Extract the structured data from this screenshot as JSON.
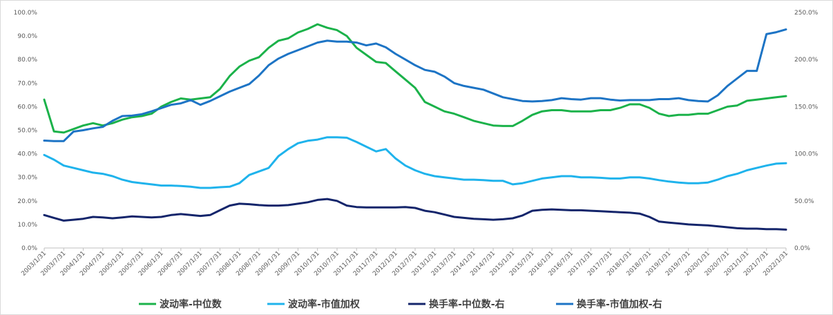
{
  "chart_data": {
    "type": "line",
    "title": "",
    "xlabel": "",
    "ylabel": "",
    "grid": false,
    "legend_position": "bottom",
    "left_axis": {
      "ylim": [
        0,
        100
      ],
      "ticks": [
        "0.0%",
        "10.0%",
        "20.0%",
        "30.0%",
        "40.0%",
        "50.0%",
        "60.0%",
        "70.0%",
        "80.0%",
        "90.0%",
        "100.0%"
      ]
    },
    "right_axis": {
      "ylim": [
        0,
        250
      ],
      "ticks": [
        "0.0%",
        "50.0%",
        "100.0%",
        "150.0%",
        "200.0%",
        "250.0%"
      ]
    },
    "x_tick_labels": [
      "2003/1/31",
      "2003/7/31",
      "2004/1/31",
      "2004/7/31",
      "2005/1/31",
      "2005/7/31",
      "2006/1/31",
      "2006/7/31",
      "2007/1/31",
      "2007/7/31",
      "2008/1/31",
      "2008/7/31",
      "2009/1/31",
      "2009/7/31",
      "2010/1/31",
      "2010/7/31",
      "2011/1/31",
      "2011/7/31",
      "2012/1/31",
      "2012/7/31",
      "2013/1/31",
      "2013/7/31",
      "2014/1/31",
      "2014/7/31",
      "2015/1/31",
      "2015/7/31",
      "2016/1/31",
      "2016/7/31",
      "2017/1/31",
      "2017/7/31",
      "2018/1/31",
      "2018/7/31",
      "2019/1/31",
      "2019/7/31",
      "2020/1/31",
      "2020/7/31",
      "2021/1/31",
      "2021/7/31",
      "2022/1/31"
    ],
    "series": [
      {
        "name": "波动率-中位数",
        "axis": "left",
        "color": "#1bb24a",
        "values": [
          63.0,
          49.5,
          49.0,
          50.5,
          52.0,
          53.0,
          52.0,
          53.0,
          54.5,
          55.5,
          56.0,
          57.0,
          60.0,
          62.0,
          63.5,
          63.0,
          63.5,
          64.0,
          67.5,
          73.0,
          77.0,
          79.5,
          81.0,
          85.0,
          88.0,
          89.0,
          91.5,
          93.0,
          95.0,
          93.5,
          92.5,
          90.0,
          85.0,
          82.0,
          79.0,
          78.5,
          75.0,
          71.5,
          68.0,
          62.0,
          60.0,
          58.0,
          57.0,
          55.5,
          54.0,
          53.0,
          52.0,
          51.8,
          51.8,
          54.0,
          56.5,
          58.0,
          58.5,
          58.5,
          58.0,
          58.0,
          58.0,
          58.5,
          58.5,
          59.5,
          61.0,
          61.0,
          59.5,
          57.0,
          56.0,
          56.5,
          56.5,
          57.0,
          57.0,
          58.5,
          60.0,
          60.5,
          62.5,
          63.0,
          63.5,
          64.0,
          64.5
        ]
      },
      {
        "name": "波动率-市值加权",
        "axis": "left",
        "color": "#1fb3ec",
        "values": [
          39.5,
          37.5,
          35.0,
          34.0,
          33.0,
          32.0,
          31.5,
          30.5,
          29.0,
          28.0,
          27.5,
          27.0,
          26.5,
          26.5,
          26.3,
          26.0,
          25.5,
          25.5,
          25.8,
          26.0,
          27.5,
          31.0,
          32.5,
          34.0,
          39.0,
          42.0,
          44.5,
          45.5,
          46.0,
          47.0,
          47.0,
          46.8,
          45.0,
          43.0,
          41.0,
          42.0,
          38.0,
          35.0,
          33.0,
          31.5,
          30.5,
          30.0,
          29.5,
          29.0,
          29.0,
          28.8,
          28.5,
          28.5,
          27.0,
          27.5,
          28.5,
          29.5,
          30.0,
          30.5,
          30.5,
          30.0,
          30.0,
          29.8,
          29.5,
          29.5,
          30.0,
          30.0,
          29.5,
          28.8,
          28.2,
          27.8,
          27.5,
          27.5,
          27.8,
          29.0,
          30.5,
          31.5,
          33.0,
          34.0,
          35.0,
          35.8,
          36.0
        ]
      },
      {
        "name": "换手率-中位数-右",
        "axis": "right",
        "color": "#14256b",
        "values": [
          35,
          32,
          29,
          30,
          31,
          33,
          32.5,
          31.5,
          32.5,
          33.5,
          33,
          32.5,
          33,
          35,
          36,
          35,
          34,
          35,
          40,
          45,
          47,
          46.5,
          45.5,
          45,
          45,
          45.5,
          47,
          48.5,
          51,
          52,
          50,
          45,
          43.5,
          43,
          43,
          43,
          43,
          43.5,
          42.5,
          39.5,
          38,
          35.5,
          33,
          32,
          31,
          30.5,
          30,
          30.5,
          31.5,
          34.5,
          39.5,
          40.5,
          41,
          40.5,
          40,
          40,
          39.5,
          39,
          38.5,
          38,
          37.5,
          36.5,
          33,
          28,
          27,
          26,
          25,
          24.5,
          24,
          23,
          22,
          21,
          20.5,
          20.5,
          20,
          20,
          19.5
        ]
      },
      {
        "name": "换手率-市值加权-右",
        "axis": "right",
        "color": "#1d74c5",
        "values": [
          114,
          113.5,
          113.5,
          123.5,
          125,
          127,
          128.5,
          135,
          140,
          140.5,
          142,
          145,
          148.5,
          152,
          153.5,
          157,
          152,
          156,
          161,
          166,
          170,
          174,
          183,
          194,
          201,
          206,
          210,
          214,
          218,
          220,
          219,
          219,
          218,
          215,
          217,
          213,
          206,
          200,
          194,
          189,
          187,
          182,
          175,
          172,
          170,
          168,
          164,
          160,
          158,
          156,
          155.5,
          156,
          157,
          159,
          158,
          157.5,
          159,
          159,
          157.5,
          156.5,
          157,
          157,
          157,
          158,
          158,
          159,
          157,
          156,
          155.5,
          162,
          172,
          180,
          188,
          188,
          227,
          229,
          232
        ]
      }
    ]
  }
}
